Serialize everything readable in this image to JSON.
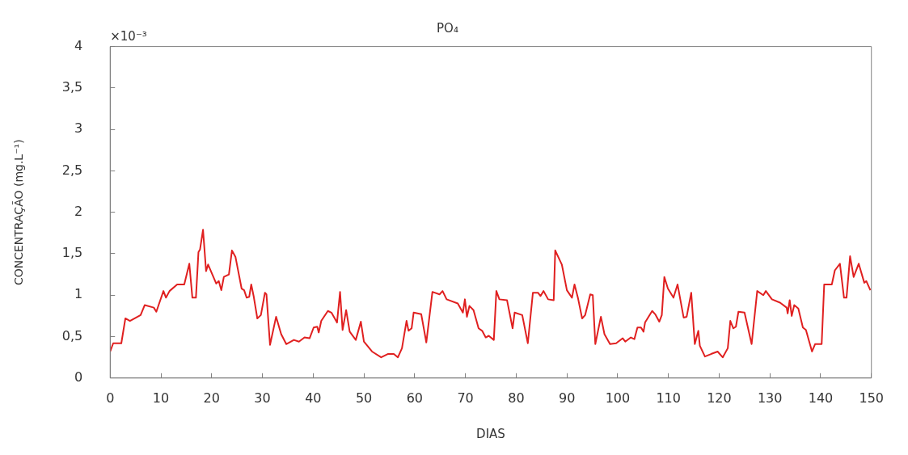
{
  "chart_data": {
    "type": "line",
    "title": "PO₄",
    "xlabel": "DIAS",
    "ylabel": "CONCENTRAÇÃO (mg.L⁻¹)",
    "annotations": [
      "×10⁻³"
    ],
    "xlim": [
      0,
      150
    ],
    "xticks": [
      0,
      10,
      20,
      30,
      40,
      50,
      60,
      70,
      80,
      90,
      100,
      110,
      120,
      130,
      140,
      150
    ],
    "ylim": [
      0,
      4
    ],
    "yticks": [
      0,
      {
        "value": 0.5,
        "label": "0,5"
      },
      1,
      {
        "value": 1.5,
        "label": "1,5"
      },
      2,
      {
        "value": 2.5,
        "label": "2,5"
      },
      3,
      {
        "value": 3.5,
        "label": "3,5"
      },
      4
    ],
    "grid": false,
    "legend": false,
    "marker": "none",
    "line_style": "solid",
    "series": [
      {
        "color": "#e02020",
        "x": [
          0,
          0.6,
          2.2,
          3.0,
          3.9,
          6.0,
          6.8,
          8.6,
          9.1,
          9.6,
          10.5,
          11.0,
          11.7,
          13.2,
          14.6,
          15.6,
          16.2,
          16.9,
          17.4,
          17.7,
          18.3,
          18.9,
          19.3,
          20.9,
          21.4,
          21.9,
          22.4,
          23.4,
          24.0,
          24.7,
          25.9,
          26.4,
          26.9,
          27.4,
          27.8,
          28.3,
          29.0,
          29.7,
          30.5,
          30.8,
          31.5,
          32.7,
          33.7,
          34.7,
          36.2,
          37.2,
          38.3,
          39.3,
          40.1,
          40.8,
          41.1,
          41.6,
          42.9,
          43.6,
          44.7,
          45.3,
          45.8,
          46.5,
          47.2,
          48.4,
          49.4,
          50.0,
          51.6,
          53.4,
          54.7,
          55.9,
          56.7,
          57.5,
          58.4,
          58.8,
          59.4,
          59.8,
          61.3,
          62.3,
          63.5,
          64.9,
          65.5,
          66.3,
          68.5,
          69.5,
          69.9,
          70.3,
          70.8,
          71.6,
          72.6,
          73.3,
          74.0,
          74.6,
          75.6,
          76.1,
          76.7,
          78.2,
          79.3,
          79.7,
          81.2,
          82.3,
          83.3,
          84.3,
          84.8,
          85.4,
          86.3,
          87.4,
          87.7,
          89.0,
          90.0,
          91.0,
          91.5,
          92.2,
          93.0,
          93.6,
          94.6,
          95.1,
          95.6,
          96.7,
          97.4,
          98.5,
          99.7,
          101.0,
          101.5,
          102.6,
          103.3,
          103.9,
          104.6,
          105.1,
          105.4,
          106.8,
          107.4,
          108.2,
          108.7,
          109.2,
          109.9,
          111.0,
          111.8,
          113.0,
          113.6,
          114.5,
          115.2,
          115.9,
          116.2,
          117.2,
          118.4,
          119.7,
          120.7,
          121.7,
          122.2,
          122.8,
          123.3,
          123.8,
          125.0,
          126.4,
          127.5,
          128.7,
          129.2,
          130.4,
          132.0,
          133.3,
          133.5,
          133.9,
          134.3,
          134.8,
          135.6,
          136.5,
          137.1,
          138.3,
          138.9,
          140.2,
          140.7,
          142.2,
          142.8,
          143.8,
          144.6,
          145.1,
          145.8,
          146.5,
          147.5,
          148.6,
          149.0,
          149.8
        ],
        "values": [
          0.32,
          0.42,
          0.42,
          0.72,
          0.69,
          0.76,
          0.88,
          0.85,
          0.8,
          0.89,
          1.05,
          0.97,
          1.05,
          1.13,
          1.13,
          1.38,
          0.97,
          0.97,
          1.52,
          1.55,
          1.79,
          1.29,
          1.37,
          1.14,
          1.17,
          1.06,
          1.22,
          1.25,
          1.54,
          1.46,
          1.08,
          1.06,
          0.97,
          0.98,
          1.13,
          0.98,
          0.72,
          0.76,
          1.03,
          1.01,
          0.4,
          0.74,
          0.53,
          0.41,
          0.46,
          0.44,
          0.49,
          0.48,
          0.61,
          0.62,
          0.55,
          0.69,
          0.81,
          0.79,
          0.67,
          1.04,
          0.58,
          0.82,
          0.56,
          0.46,
          0.68,
          0.44,
          0.32,
          0.25,
          0.29,
          0.29,
          0.25,
          0.36,
          0.69,
          0.57,
          0.6,
          0.79,
          0.77,
          0.43,
          1.04,
          1.01,
          1.05,
          0.95,
          0.9,
          0.79,
          0.95,
          0.74,
          0.87,
          0.82,
          0.6,
          0.57,
          0.49,
          0.51,
          0.46,
          1.05,
          0.95,
          0.94,
          0.6,
          0.79,
          0.76,
          0.42,
          1.03,
          1.03,
          0.99,
          1.05,
          0.95,
          0.94,
          1.54,
          1.37,
          1.06,
          0.97,
          1.13,
          0.96,
          0.72,
          0.76,
          1.01,
          1.0,
          0.41,
          0.74,
          0.53,
          0.41,
          0.42,
          0.48,
          0.44,
          0.49,
          0.47,
          0.61,
          0.61,
          0.56,
          0.67,
          0.81,
          0.77,
          0.68,
          0.76,
          1.22,
          1.08,
          0.97,
          1.13,
          0.73,
          0.74,
          1.03,
          0.41,
          0.57,
          0.39,
          0.26,
          0.29,
          0.32,
          0.25,
          0.36,
          0.69,
          0.6,
          0.62,
          0.8,
          0.79,
          0.41,
          1.05,
          1.0,
          1.05,
          0.95,
          0.91,
          0.85,
          0.78,
          0.94,
          0.75,
          0.88,
          0.84,
          0.61,
          0.58,
          0.32,
          0.41,
          0.41,
          1.13,
          1.13,
          1.3,
          1.38,
          0.97,
          0.97,
          1.47,
          1.22,
          1.38,
          1.15,
          1.17,
          1.06
        ]
      }
    ]
  }
}
